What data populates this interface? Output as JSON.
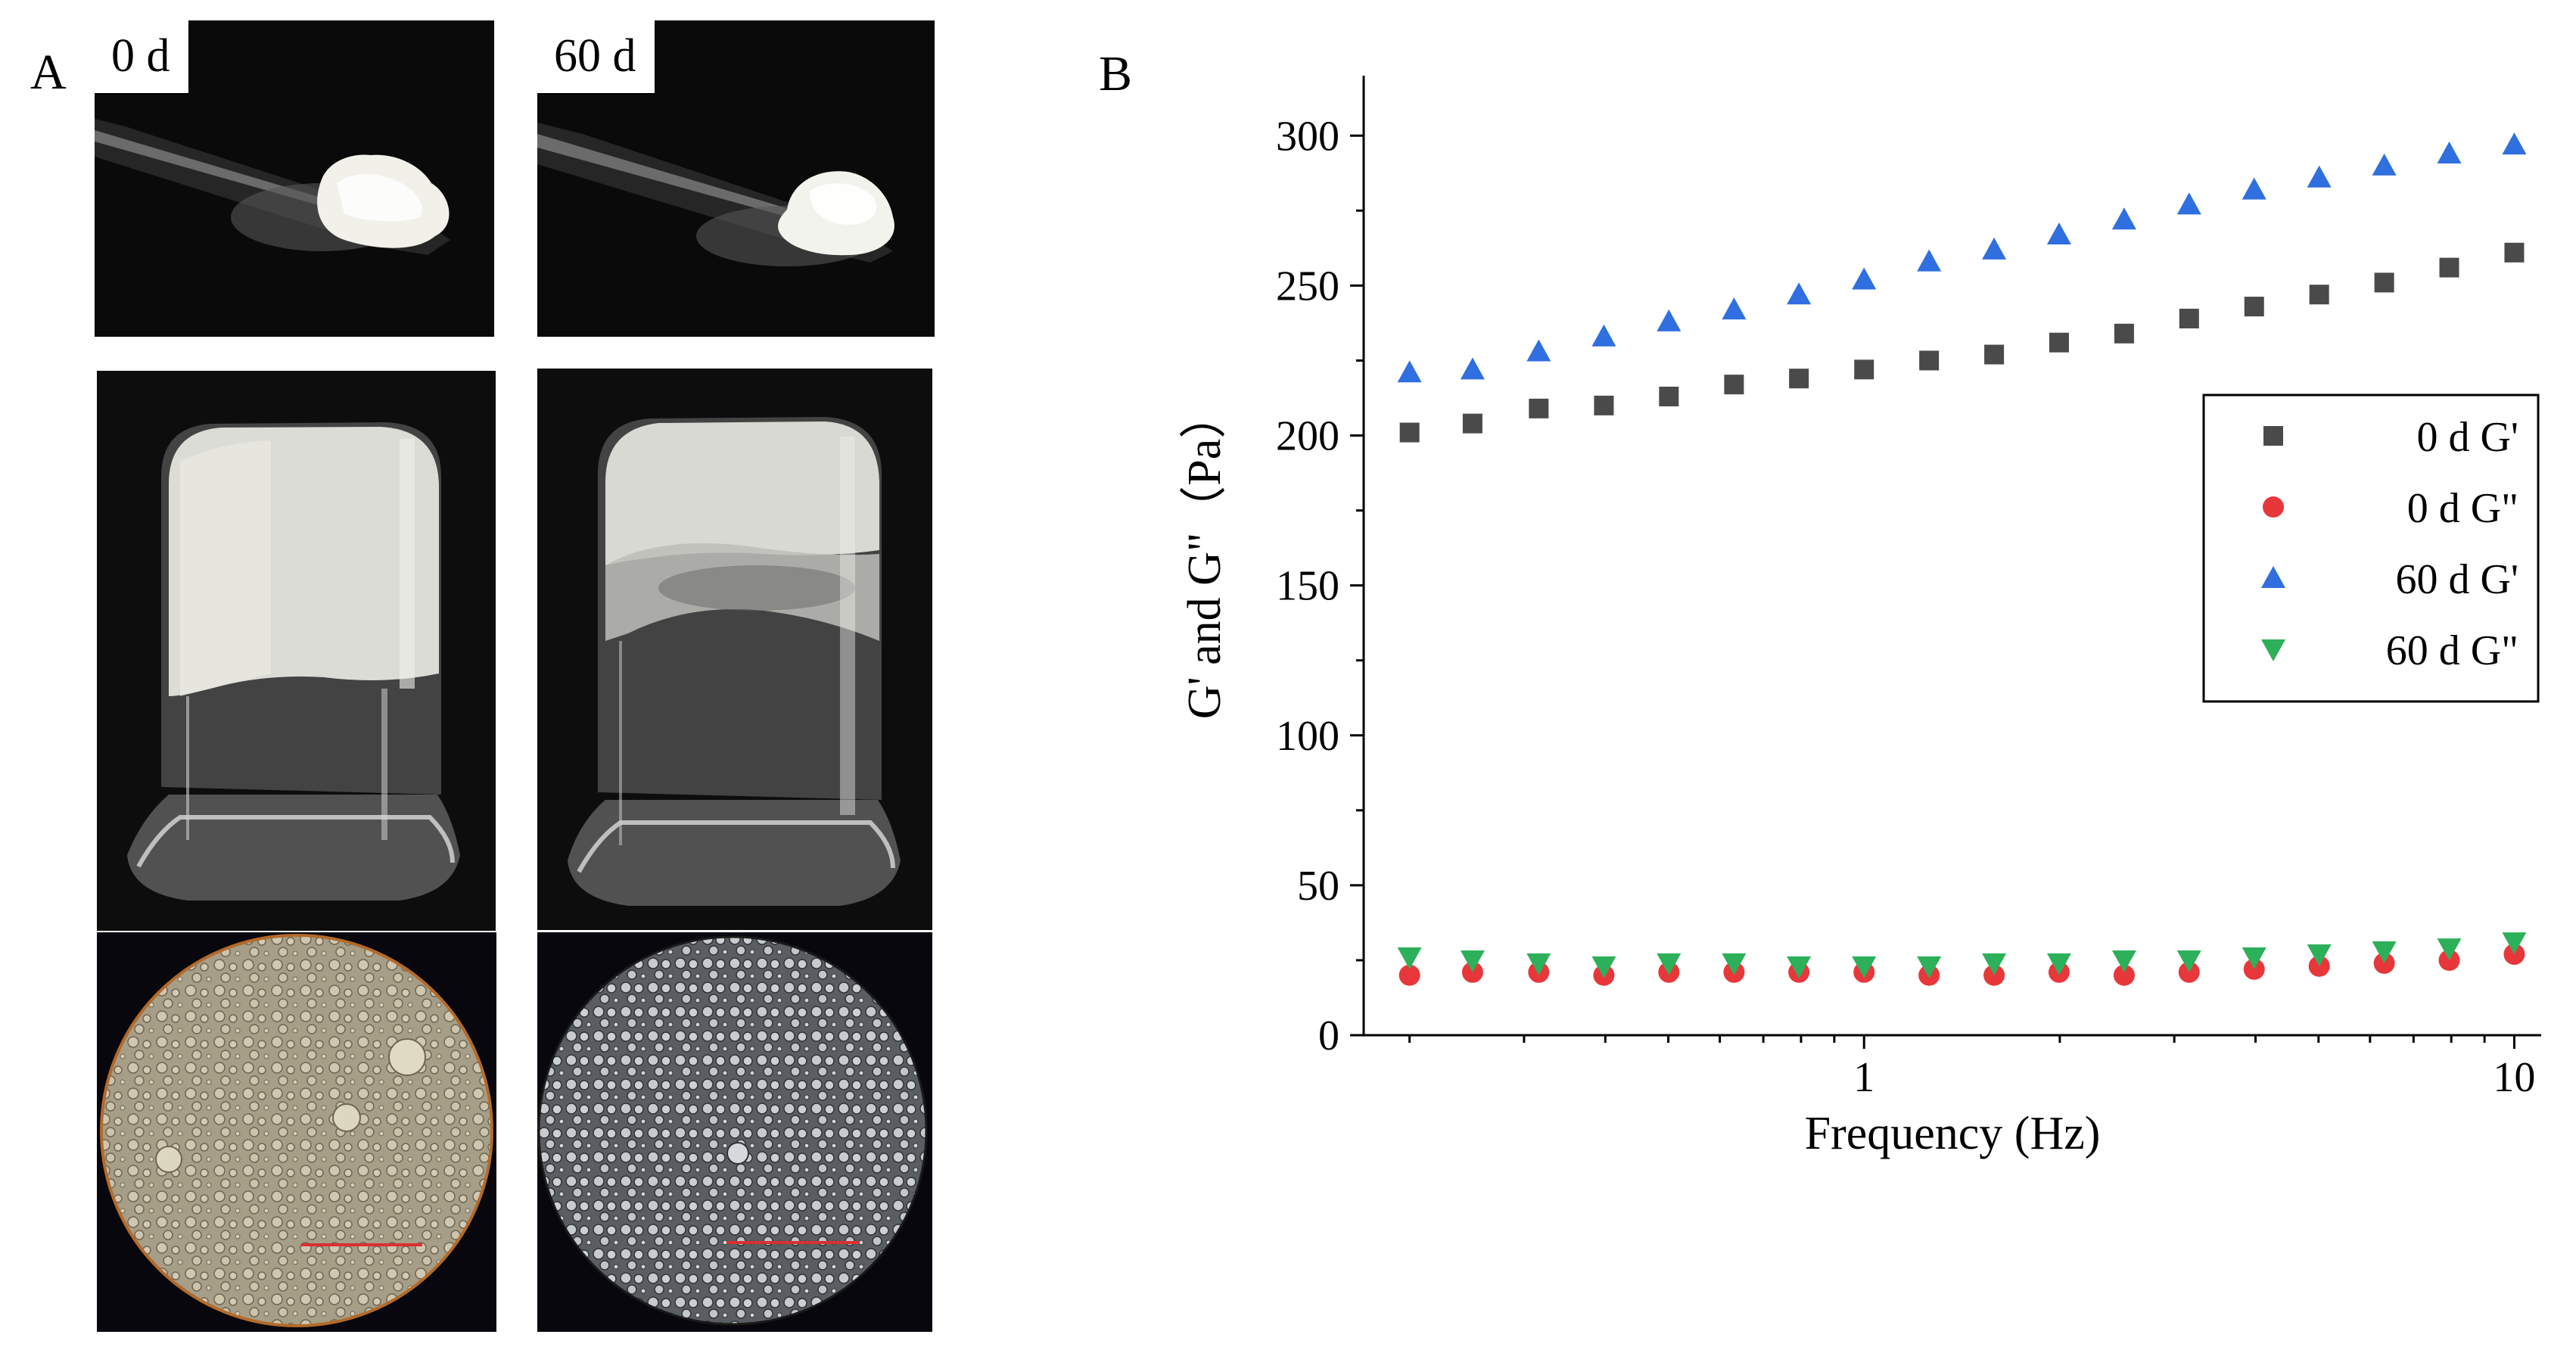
{
  "panel_a": {
    "letter": "A",
    "labels": {
      "day0": "0 d",
      "day60": "60 d"
    }
  },
  "panel_b": {
    "letter": "B"
  },
  "colors": {
    "g_prime_0d": "#4a4a4a",
    "g_double_0d": "#e8373a",
    "g_prime_60d": "#2f6fe0",
    "g_double_60d": "#2db05a",
    "scale_bar": "#d93030"
  },
  "chart_data": {
    "type": "scatter",
    "title": "",
    "xlabel": "Frequency (Hz)",
    "ylabel": "G' and G\"（Pa）",
    "xscale": "log",
    "xlim": [
      0.17,
      11
    ],
    "ylim": [
      0,
      320
    ],
    "yticks": [
      0,
      50,
      100,
      150,
      200,
      250,
      300
    ],
    "xticks_major": [
      1,
      10
    ],
    "grid": false,
    "legend_position": "right",
    "x": [
      0.2,
      0.25,
      0.316,
      0.398,
      0.501,
      0.631,
      0.794,
      1.0,
      1.259,
      1.585,
      1.995,
      2.512,
      3.162,
      3.981,
      5.012,
      6.31,
      7.943,
      10.0
    ],
    "series": [
      {
        "name": "0 d G'",
        "marker": "square",
        "values": [
          201,
          204,
          209,
          210,
          213,
          217,
          219,
          222,
          225,
          227,
          231,
          234,
          239,
          243,
          247,
          251,
          256,
          261
        ]
      },
      {
        "name": "0 d G\"",
        "marker": "circle",
        "values": [
          20,
          21,
          21,
          20,
          21,
          21,
          21,
          21,
          20,
          20,
          21,
          20,
          21,
          22,
          23,
          24,
          25,
          27
        ]
      },
      {
        "name": "60 d G'",
        "marker": "triangle-up",
        "values": [
          221,
          222,
          228,
          233,
          238,
          242,
          247,
          252,
          258,
          262,
          267,
          272,
          277,
          282,
          286,
          290,
          294,
          297
        ]
      },
      {
        "name": "60 d G\"",
        "marker": "triangle-down",
        "values": [
          26,
          25,
          24,
          23,
          24,
          24,
          23,
          23,
          23,
          24,
          24,
          25,
          25,
          26,
          27,
          28,
          29,
          31
        ]
      }
    ]
  }
}
